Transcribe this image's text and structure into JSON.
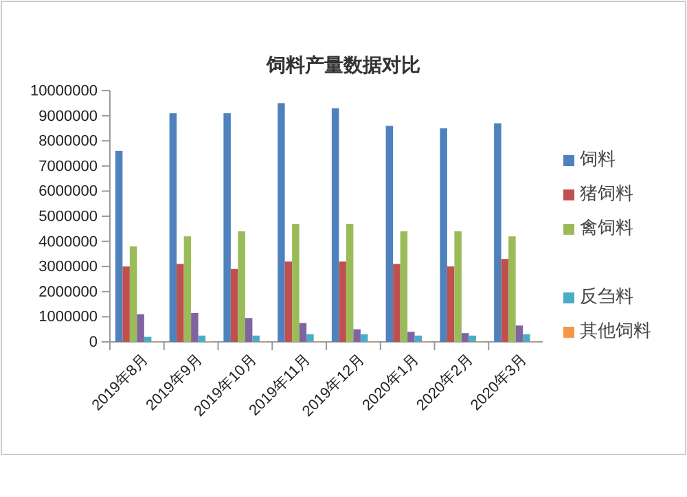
{
  "chart_data": {
    "type": "bar",
    "title": "饲料产量数据对比",
    "categories": [
      "2019年8月",
      "2019年9月",
      "2019年10月",
      "2019年11月",
      "2019年12月",
      "2020年1月",
      "2020年2月",
      "2020年3月"
    ],
    "series": [
      {
        "name": "饲料",
        "color": "#4f81bd",
        "values": [
          7600000,
          9100000,
          9100000,
          9500000,
          9300000,
          8600000,
          8500000,
          8700000
        ]
      },
      {
        "name": "猪饲料",
        "color": "#c0504d",
        "values": [
          3000000,
          3100000,
          2900000,
          3200000,
          3200000,
          3100000,
          3000000,
          3300000
        ]
      },
      {
        "name": "禽饲料",
        "color": "#9bbb59",
        "values": [
          3800000,
          4200000,
          4400000,
          4700000,
          4700000,
          4400000,
          4400000,
          4200000
        ]
      },
      {
        "color": "#8064a2",
        "values": [
          1100000,
          1150000,
          950000,
          750000,
          500000,
          400000,
          350000,
          650000
        ]
      },
      {
        "name": "反刍料",
        "color": "#4bacc6",
        "values": [
          200000,
          250000,
          250000,
          300000,
          300000,
          250000,
          250000,
          300000
        ]
      },
      {
        "name": "其他饲料",
        "color": "#f79646",
        "values": [
          20000,
          20000,
          20000,
          20000,
          20000,
          20000,
          20000,
          20000
        ]
      }
    ],
    "ylim": [
      0,
      10000000
    ],
    "yticks": [
      0,
      1000000,
      2000000,
      3000000,
      4000000,
      5000000,
      6000000,
      7000000,
      8000000,
      9000000,
      10000000
    ],
    "grid": false,
    "legend": "right"
  }
}
